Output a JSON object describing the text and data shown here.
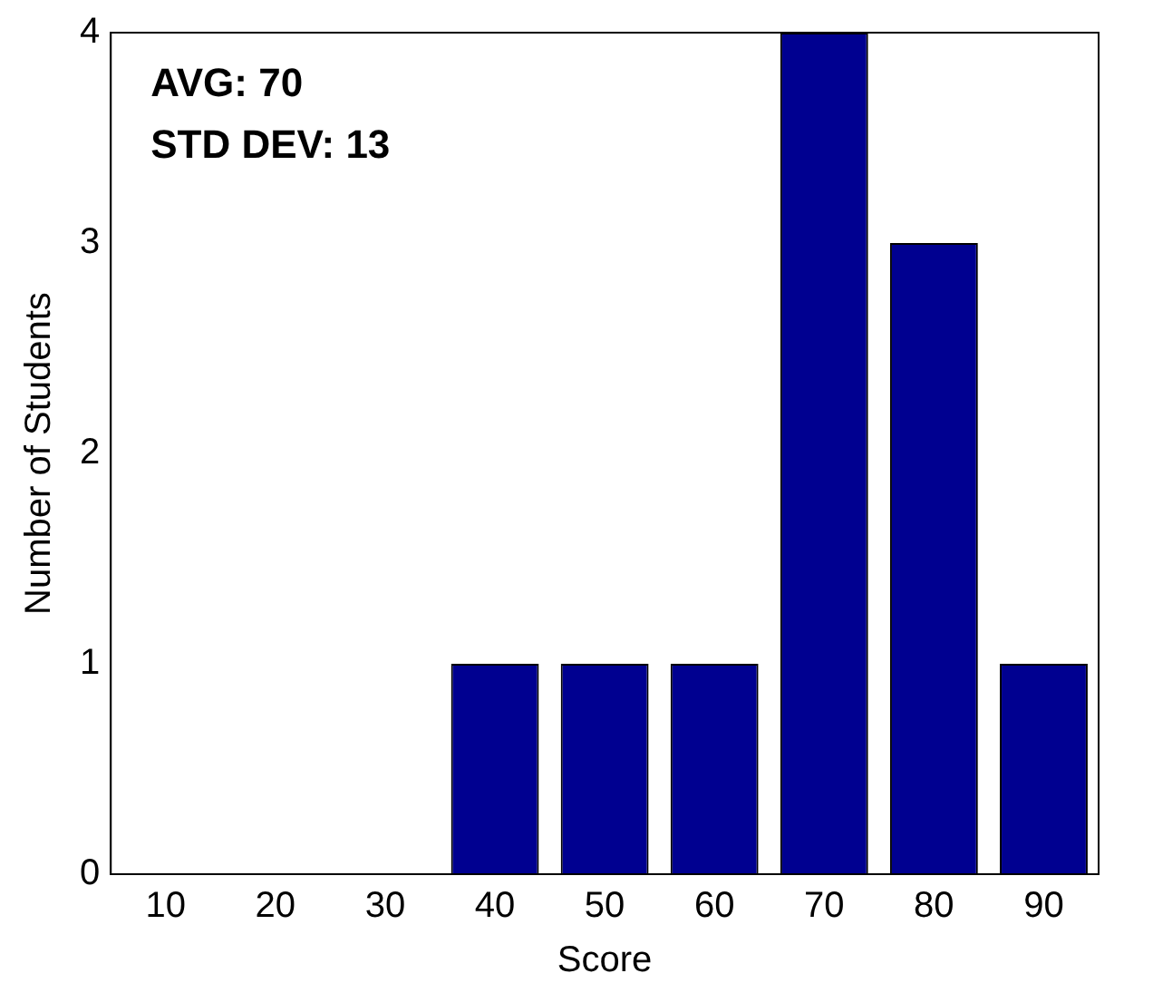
{
  "chart_data": {
    "type": "bar",
    "xlabel": "Score",
    "ylabel": "Number of Students",
    "categories": [
      "10",
      "20",
      "30",
      "40",
      "50",
      "60",
      "70",
      "80",
      "90"
    ],
    "values": [
      0,
      0,
      0,
      1,
      1,
      1,
      4,
      3,
      1
    ],
    "color": "#000090",
    "ylim": [
      0,
      4
    ],
    "yticks": [
      0,
      1,
      2,
      3,
      4
    ],
    "grid": false,
    "legend": false,
    "annotations": [
      "AVG: 70",
      "STD DEV: 13"
    ]
  }
}
